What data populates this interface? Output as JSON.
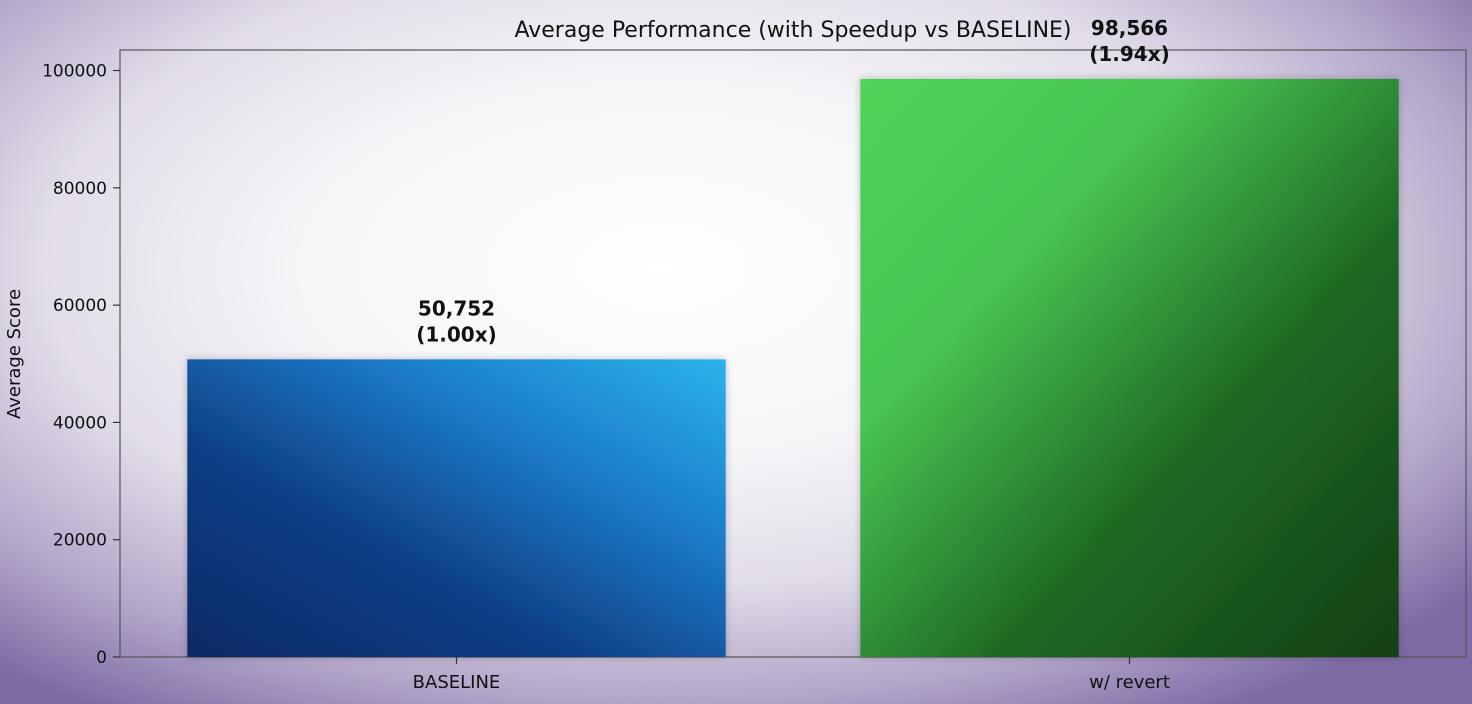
{
  "chart_data": {
    "type": "bar",
    "title": "Average Performance (with Speedup vs BASELINE)",
    "xlabel": "",
    "ylabel": "Average Score",
    "ylim": [
      0,
      103500
    ],
    "yticks": [
      0,
      20000,
      40000,
      60000,
      80000,
      100000
    ],
    "ytick_labels": [
      "0",
      "20000",
      "40000",
      "60000",
      "80000",
      "100000"
    ],
    "categories": [
      "BASELINE",
      "w/ revert"
    ],
    "values": [
      50752,
      98566
    ],
    "value_labels": [
      "50,752",
      "98,566"
    ],
    "speedup_labels": [
      "(1.00x)",
      "(1.94x)"
    ],
    "bar_colors": [
      "#1a78c8",
      "#2f9a35"
    ],
    "grid": false,
    "legend": "none"
  }
}
